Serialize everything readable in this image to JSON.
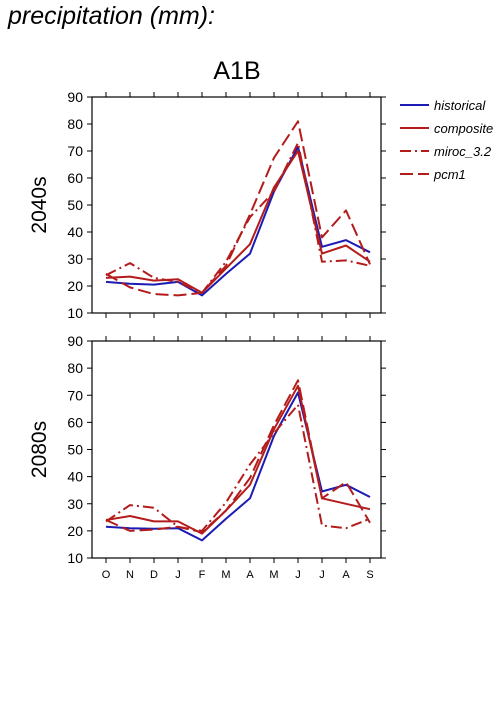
{
  "page_title": "precipitation (mm):",
  "colors": {
    "historical": "#1c1cb4",
    "model": "#b41c1c",
    "axis": "#000000"
  },
  "chart_data": {
    "type": "line",
    "title": "A1B",
    "categories": [
      "O",
      "N",
      "D",
      "J",
      "F",
      "M",
      "A",
      "M",
      "J",
      "J",
      "A",
      "S"
    ],
    "ylim": [
      10,
      90
    ],
    "yticks": [
      10,
      20,
      30,
      40,
      50,
      60,
      70,
      80,
      90
    ],
    "grid": false,
    "legend_position": "top-right",
    "legend": [
      {
        "label": "historical",
        "style": "solid",
        "color": "#1c1cb4"
      },
      {
        "label": "composite",
        "style": "solid",
        "color": "#b41c1c"
      },
      {
        "label": "miroc_3.2",
        "style": "dashdot",
        "color": "#b41c1c"
      },
      {
        "label": "pcm1",
        "style": "dashed",
        "color": "#b41c1c"
      }
    ],
    "panels": [
      {
        "ylabel": "2040s",
        "series": [
          {
            "name": "historical",
            "style": "solid",
            "color": "#1c1cb4",
            "values": [
              21.5,
              20.8,
              20.5,
              21.5,
              16.5,
              24.5,
              32.0,
              55.0,
              71.5,
              34.5,
              37.0,
              32.5
            ]
          },
          {
            "name": "composite",
            "style": "solid",
            "color": "#b41c1c",
            "values": [
              23.0,
              23.5,
              22.0,
              22.5,
              17.5,
              26.5,
              35.5,
              56.5,
              70.0,
              32.0,
              35.0,
              29.0
            ]
          },
          {
            "name": "miroc_3.2",
            "style": "dashdot",
            "color": "#b41c1c",
            "values": [
              24.0,
              28.5,
              23.0,
              21.5,
              17.5,
              29.0,
              45.5,
              55.0,
              73.0,
              29.0,
              29.5,
              27.5
            ]
          },
          {
            "name": "pcm1",
            "style": "dashed",
            "color": "#b41c1c",
            "values": [
              24.5,
              19.5,
              17.0,
              16.5,
              17.5,
              27.5,
              46.5,
              67.5,
              81.0,
              38.0,
              48.0,
              28.0
            ]
          }
        ]
      },
      {
        "ylabel": "2080s",
        "series": [
          {
            "name": "historical",
            "style": "solid",
            "color": "#1c1cb4",
            "values": [
              21.5,
              21.0,
              20.8,
              21.0,
              16.5,
              24.5,
              32.0,
              55.0,
              71.0,
              34.5,
              37.0,
              32.5
            ]
          },
          {
            "name": "composite",
            "style": "solid",
            "color": "#b41c1c",
            "values": [
              24.0,
              25.5,
              23.5,
              23.5,
              19.0,
              27.5,
              37.0,
              57.5,
              73.5,
              32.0,
              30.0,
              28.0
            ]
          },
          {
            "name": "miroc_3.2",
            "style": "dashdot",
            "color": "#b41c1c",
            "values": [
              23.5,
              29.5,
              28.5,
              21.5,
              20.0,
              30.5,
              44.5,
              56.0,
              66.5,
              22.0,
              21.0,
              24.5
            ]
          },
          {
            "name": "pcm1",
            "style": "dashed",
            "color": "#b41c1c",
            "values": [
              24.0,
              20.0,
              20.5,
              21.5,
              19.5,
              27.5,
              39.5,
              59.0,
              75.5,
              32.0,
              38.0,
              23.0
            ]
          }
        ]
      }
    ]
  }
}
